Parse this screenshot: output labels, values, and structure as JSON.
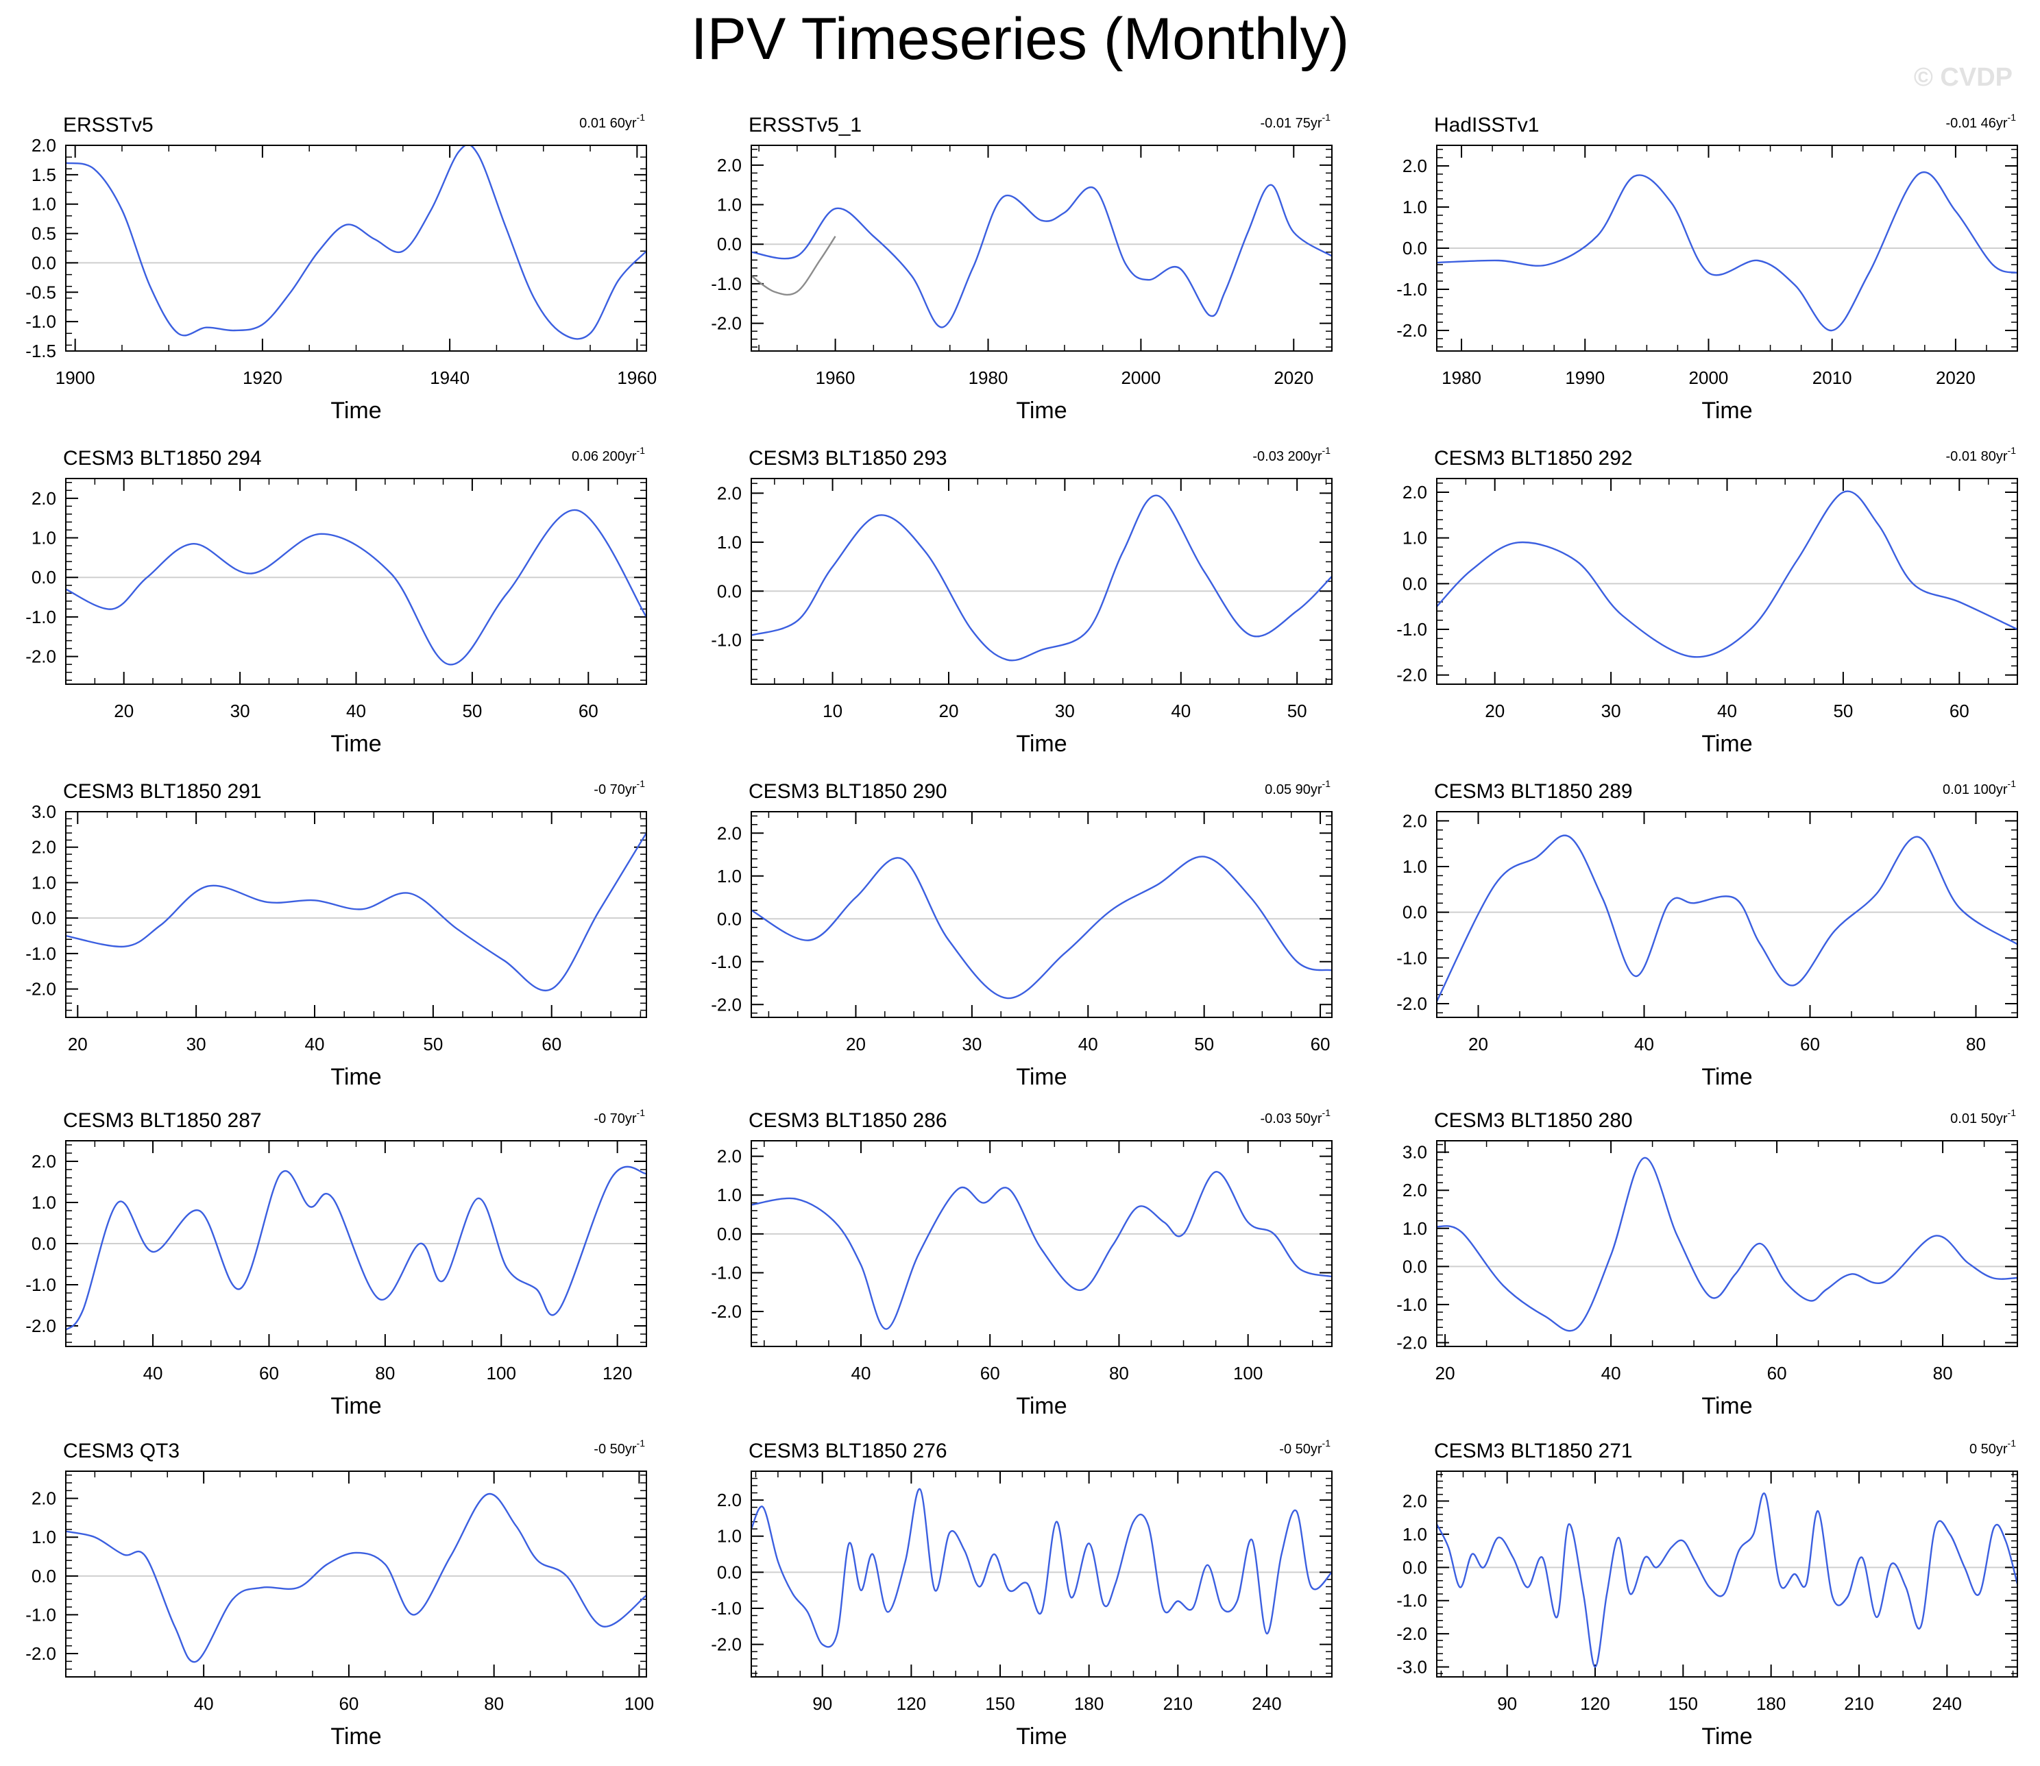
{
  "title": "IPV Timeseries (Monthly)",
  "watermark": "© CVDP",
  "colors": {
    "series": "#3b5fe0",
    "obs_overlay": "#8c8c8c",
    "zero_line": "#cfcfcf",
    "axis": "#000000"
  },
  "chart_data": [
    {
      "type": "line",
      "title": "ERSSTv5",
      "trend": "0.01",
      "period": "60yr",
      "exp": "-1",
      "xlabel": "Time",
      "xlim": [
        1899,
        1961
      ],
      "ylim": [
        -1.5,
        2.0
      ],
      "xticks": [
        1900,
        1920,
        1940,
        1960
      ],
      "yticks": [
        2.0,
        1.5,
        1.0,
        0.5,
        0.0,
        -0.5,
        -1.0,
        -1.5
      ],
      "series": [
        {
          "name": "ipv",
          "x": [
            1899,
            1902,
            1905,
            1908,
            1911,
            1914,
            1917,
            1920,
            1923,
            1926,
            1929,
            1932,
            1935,
            1938,
            1941,
            1943,
            1946,
            1949,
            1952,
            1955,
            1958,
            1961
          ],
          "values": [
            1.7,
            1.6,
            0.9,
            -0.4,
            -1.2,
            -1.1,
            -1.15,
            -1.05,
            -0.5,
            0.2,
            0.65,
            0.4,
            0.2,
            0.9,
            1.9,
            1.85,
            0.6,
            -0.6,
            -1.2,
            -1.2,
            -0.3,
            0.2
          ]
        }
      ]
    },
    {
      "type": "line",
      "title": "ERSSTv5_1",
      "trend": "-0.01",
      "period": "75yr",
      "exp": "-1",
      "xlabel": "Time",
      "xlim": [
        1949,
        2025
      ],
      "ylim": [
        -2.7,
        2.5
      ],
      "xticks": [
        1960,
        1980,
        2000,
        2020
      ],
      "yticks": [
        2.0,
        1.0,
        0.0,
        -1.0,
        -2.0
      ],
      "series": [
        {
          "name": "ipv",
          "x": [
            1949,
            1955,
            1960,
            1965,
            1970,
            1974,
            1978,
            1982,
            1987,
            1990,
            1994,
            1998,
            2001,
            2005,
            2009,
            2011,
            2014,
            2017,
            2020,
            2025
          ],
          "values": [
            -0.2,
            -0.3,
            0.9,
            0.2,
            -0.8,
            -2.1,
            -0.6,
            1.2,
            0.6,
            0.8,
            1.4,
            -0.5,
            -0.9,
            -0.6,
            -1.8,
            -1.2,
            0.3,
            1.5,
            0.3,
            -0.3
          ]
        },
        {
          "name": "overlay",
          "x": [
            1949,
            1952,
            1955,
            1958,
            1960
          ],
          "values": [
            -0.8,
            -1.2,
            -1.2,
            -0.4,
            0.2
          ]
        }
      ]
    },
    {
      "type": "line",
      "title": "HadISSTv1",
      "trend": "-0.01",
      "period": "46yr",
      "exp": "-1",
      "xlabel": "Time",
      "xlim": [
        1978,
        2025
      ],
      "ylim": [
        -2.5,
        2.5
      ],
      "xticks": [
        1980,
        1990,
        2000,
        2010,
        2020
      ],
      "yticks": [
        2.0,
        1.0,
        0.0,
        -1.0,
        -2.0
      ],
      "series": [
        {
          "name": "ipv",
          "x": [
            1978,
            1983,
            1987,
            1991,
            1994,
            1997,
            2000,
            2004,
            2007,
            2010,
            2013,
            2017,
            2020,
            2023,
            2025
          ],
          "values": [
            -0.35,
            -0.3,
            -0.4,
            0.3,
            1.75,
            1.1,
            -0.6,
            -0.3,
            -0.9,
            -2.0,
            -0.6,
            1.8,
            0.9,
            -0.4,
            -0.6
          ]
        }
      ]
    },
    {
      "type": "line",
      "title": "CESM3 BLT1850 294",
      "trend": "0.06",
      "period": "200yr",
      "exp": "-1",
      "xlabel": "Time",
      "xlim": [
        15,
        65
      ],
      "ylim": [
        -2.7,
        2.5
      ],
      "xticks": [
        20,
        30,
        40,
        50,
        60
      ],
      "yticks": [
        2.0,
        1.0,
        0.0,
        -1.0,
        -2.0
      ],
      "series": [
        {
          "name": "ipv",
          "x": [
            15,
            19,
            22,
            26,
            31,
            37,
            43,
            48,
            53,
            59,
            65
          ],
          "values": [
            -0.3,
            -0.8,
            0.0,
            0.85,
            0.1,
            1.1,
            0.1,
            -2.2,
            -0.4,
            1.7,
            -1.0
          ]
        }
      ]
    },
    {
      "type": "line",
      "title": "CESM3 BLT1850 293",
      "trend": "-0.03",
      "period": "200yr",
      "exp": "-1",
      "xlabel": "Time",
      "xlim": [
        3,
        53
      ],
      "ylim": [
        -1.9,
        2.3
      ],
      "xticks": [
        10,
        20,
        30,
        40,
        50
      ],
      "yticks": [
        2.0,
        1.0,
        0.0,
        -1.0
      ],
      "series": [
        {
          "name": "ipv",
          "x": [
            3,
            7,
            10,
            14,
            18,
            22,
            25,
            28,
            32,
            35,
            38,
            42,
            46,
            50,
            53
          ],
          "values": [
            -0.9,
            -0.6,
            0.5,
            1.55,
            0.8,
            -0.8,
            -1.4,
            -1.2,
            -0.8,
            0.8,
            1.95,
            0.4,
            -0.9,
            -0.4,
            0.3
          ]
        }
      ]
    },
    {
      "type": "line",
      "title": "CESM3 BLT1850 292",
      "trend": "-0.01",
      "period": "80yr",
      "exp": "-1",
      "xlabel": "Time",
      "xlim": [
        15,
        65
      ],
      "ylim": [
        -2.2,
        2.3
      ],
      "xticks": [
        20,
        30,
        40,
        50,
        60
      ],
      "yticks": [
        2.0,
        1.0,
        0.0,
        -1.0,
        -2.0
      ],
      "series": [
        {
          "name": "ipv",
          "x": [
            15,
            18,
            22,
            27,
            31,
            37,
            42,
            46,
            50,
            53,
            56,
            60,
            65
          ],
          "values": [
            -0.5,
            0.3,
            0.9,
            0.5,
            -0.7,
            -1.6,
            -1.0,
            0.5,
            2.0,
            1.3,
            0.0,
            -0.4,
            -1.0
          ]
        }
      ]
    },
    {
      "type": "line",
      "title": "CESM3 BLT1850 291",
      "trend": "-0",
      "period": "70yr",
      "exp": "-1",
      "xlabel": "Time",
      "xlim": [
        19,
        68
      ],
      "ylim": [
        -2.8,
        3.0
      ],
      "xticks": [
        20,
        30,
        40,
        50,
        60
      ],
      "yticks": [
        3.0,
        2.0,
        1.0,
        0.0,
        -1.0,
        -2.0
      ],
      "series": [
        {
          "name": "ipv",
          "x": [
            19,
            24,
            27,
            31,
            36,
            40,
            44,
            48,
            52,
            56,
            60,
            64,
            68
          ],
          "values": [
            -0.5,
            -0.8,
            -0.2,
            0.9,
            0.45,
            0.5,
            0.25,
            0.7,
            -0.3,
            -1.2,
            -2.0,
            0.2,
            2.4
          ]
        }
      ]
    },
    {
      "type": "line",
      "title": "CESM3 BLT1850 290",
      "trend": "0.05",
      "period": "90yr",
      "exp": "-1",
      "xlabel": "Time",
      "xlim": [
        11,
        61
      ],
      "ylim": [
        -2.3,
        2.5
      ],
      "xticks": [
        20,
        30,
        40,
        50,
        60
      ],
      "yticks": [
        2.0,
        1.0,
        0.0,
        -1.0,
        -2.0
      ],
      "series": [
        {
          "name": "ipv",
          "x": [
            11,
            16,
            20,
            24,
            28,
            33,
            38,
            42,
            46,
            50,
            54,
            58,
            61
          ],
          "values": [
            0.2,
            -0.5,
            0.5,
            1.4,
            -0.5,
            -1.85,
            -0.8,
            0.2,
            0.8,
            1.45,
            0.5,
            -1.0,
            -1.2
          ]
        }
      ]
    },
    {
      "type": "line",
      "title": "CESM3 BLT1850 289",
      "trend": "0.01",
      "period": "100yr",
      "exp": "-1",
      "xlabel": "Time",
      "xlim": [
        15,
        85
      ],
      "ylim": [
        -2.3,
        2.2
      ],
      "xticks": [
        20,
        40,
        60,
        80
      ],
      "yticks": [
        2.0,
        1.0,
        0.0,
        -1.0,
        -2.0
      ],
      "series": [
        {
          "name": "ipv",
          "x": [
            15,
            22,
            27,
            31,
            35,
            39,
            43,
            46,
            51,
            54,
            58,
            63,
            68,
            73,
            78,
            85
          ],
          "values": [
            -1.95,
            0.6,
            1.2,
            1.65,
            0.3,
            -1.4,
            0.2,
            0.2,
            0.3,
            -0.7,
            -1.6,
            -0.4,
            0.4,
            1.65,
            0.1,
            -0.7
          ]
        }
      ]
    },
    {
      "type": "line",
      "title": "CESM3 BLT1850 287",
      "trend": "-0",
      "period": "70yr",
      "exp": "-1",
      "xlabel": "Time",
      "xlim": [
        25,
        125
      ],
      "ylim": [
        -2.5,
        2.5
      ],
      "xticks": [
        40,
        60,
        80,
        100,
        120
      ],
      "yticks": [
        2.0,
        1.0,
        0.0,
        -1.0,
        -2.0
      ],
      "series": [
        {
          "name": "ipv",
          "x": [
            25,
            28,
            34,
            40,
            48,
            55,
            62,
            67,
            71,
            79,
            86,
            90,
            96,
            101,
            106,
            110,
            119,
            125
          ],
          "values": [
            -2.1,
            -1.6,
            1.0,
            -0.2,
            0.8,
            -1.1,
            1.7,
            0.9,
            1.1,
            -1.35,
            0.0,
            -0.9,
            1.1,
            -0.6,
            -1.1,
            -1.6,
            1.6,
            1.7
          ]
        }
      ]
    },
    {
      "type": "line",
      "title": "CESM3 BLT1850 286",
      "trend": "-0.03",
      "period": "50yr",
      "exp": "-1",
      "xlabel": "Time",
      "xlim": [
        23,
        113
      ],
      "ylim": [
        -2.9,
        2.4
      ],
      "xticks": [
        40,
        60,
        80,
        100
      ],
      "yticks": [
        2.0,
        1.0,
        0.0,
        -1.0,
        -2.0
      ],
      "series": [
        {
          "name": "ipv",
          "x": [
            23,
            30,
            36,
            40,
            44,
            49,
            55,
            59,
            63,
            68,
            74,
            79,
            83,
            87,
            90,
            95,
            100,
            104,
            108,
            113
          ],
          "values": [
            0.75,
            0.9,
            0.3,
            -0.8,
            -2.45,
            -0.5,
            1.15,
            0.8,
            1.15,
            -0.4,
            -1.45,
            -0.3,
            0.7,
            0.3,
            0.0,
            1.6,
            0.3,
            0.0,
            -0.9,
            -1.1
          ]
        }
      ]
    },
    {
      "type": "line",
      "title": "CESM3 BLT1850 280",
      "trend": "0.01",
      "period": "50yr",
      "exp": "-1",
      "xlabel": "Time",
      "xlim": [
        19,
        89
      ],
      "ylim": [
        -2.1,
        3.3
      ],
      "xticks": [
        20,
        40,
        60,
        80
      ],
      "yticks": [
        3.0,
        2.0,
        1.0,
        0.0,
        -1.0,
        -2.0
      ],
      "series": [
        {
          "name": "ipv",
          "x": [
            19,
            22,
            27,
            32,
            36,
            40,
            44,
            48,
            52,
            55,
            58,
            61,
            64,
            66,
            69,
            73,
            79,
            83,
            86,
            89
          ],
          "values": [
            1.05,
            0.9,
            -0.5,
            -1.3,
            -1.6,
            0.3,
            2.85,
            0.8,
            -0.8,
            -0.2,
            0.6,
            -0.4,
            -0.9,
            -0.6,
            -0.2,
            -0.4,
            0.8,
            0.1,
            -0.3,
            -0.3
          ]
        }
      ]
    },
    {
      "type": "line",
      "title": "CESM3 QT3",
      "trend": "-0",
      "period": "50yr",
      "exp": "-1",
      "xlabel": "Time",
      "xlim": [
        21,
        101
      ],
      "ylim": [
        -2.6,
        2.7
      ],
      "xticks": [
        40,
        60,
        80,
        100
      ],
      "yticks": [
        2.0,
        1.0,
        0.0,
        -1.0,
        -2.0
      ],
      "series": [
        {
          "name": "ipv",
          "x": [
            21,
            25,
            29,
            32,
            36,
            39,
            44,
            48,
            53,
            57,
            61,
            65,
            69,
            74,
            79,
            83,
            86,
            90,
            95,
            101
          ],
          "values": [
            1.15,
            1.0,
            0.55,
            0.5,
            -1.3,
            -2.2,
            -0.6,
            -0.3,
            -0.3,
            0.3,
            0.6,
            0.3,
            -1.0,
            0.5,
            2.1,
            1.3,
            0.4,
            0.0,
            -1.3,
            -0.5
          ]
        }
      ]
    },
    {
      "type": "line",
      "title": "CESM3 BLT1850 276",
      "trend": "-0",
      "period": "50yr",
      "exp": "-1",
      "xlabel": "Time",
      "xlim": [
        66,
        262
      ],
      "ylim": [
        -2.9,
        2.8
      ],
      "xticks": [
        90,
        120,
        150,
        180,
        210,
        240
      ],
      "yticks": [
        2.0,
        1.0,
        0.0,
        -1.0,
        -2.0
      ],
      "series": [
        {
          "name": "ipv",
          "x": [
            66,
            70,
            75,
            80,
            85,
            90,
            95,
            99,
            103,
            107,
            112,
            118,
            123,
            128,
            133,
            138,
            143,
            148,
            153,
            159,
            164,
            169,
            174,
            180,
            185,
            189,
            195,
            200,
            205,
            210,
            215,
            220,
            225,
            230,
            235,
            240,
            245,
            250,
            255,
            262
          ],
          "values": [
            1.2,
            1.8,
            0.3,
            -0.6,
            -1.1,
            -2.0,
            -1.7,
            0.8,
            -0.5,
            0.5,
            -1.1,
            0.3,
            2.3,
            -0.5,
            1.1,
            0.6,
            -0.4,
            0.5,
            -0.5,
            -0.3,
            -1.1,
            1.4,
            -0.7,
            0.8,
            -0.9,
            -0.3,
            1.4,
            1.3,
            -1.0,
            -0.8,
            -1.0,
            0.2,
            -1.0,
            -0.8,
            0.9,
            -1.7,
            0.5,
            1.7,
            -0.4,
            0.0
          ]
        }
      ]
    },
    {
      "type": "line",
      "title": "CESM3 BLT1850 271",
      "trend": "0",
      "period": "50yr",
      "exp": "-1",
      "xlabel": "Time",
      "xlim": [
        66,
        264
      ],
      "ylim": [
        -3.3,
        2.9
      ],
      "xticks": [
        90,
        120,
        150,
        180,
        210,
        240
      ],
      "yticks": [
        2.0,
        1.0,
        0.0,
        -1.0,
        -2.0,
        -3.0
      ],
      "series": [
        {
          "name": "ipv",
          "x": [
            66,
            70,
            74,
            78,
            82,
            87,
            92,
            97,
            102,
            107,
            111,
            116,
            120,
            124,
            128,
            132,
            137,
            141,
            146,
            150,
            154,
            159,
            164,
            169,
            174,
            178,
            183,
            188,
            192,
            196,
            201,
            206,
            211,
            216,
            221,
            226,
            231,
            236,
            241,
            246,
            251,
            256,
            260,
            264
          ],
          "values": [
            1.3,
            0.6,
            -0.6,
            0.4,
            0.0,
            0.9,
            0.3,
            -0.6,
            0.3,
            -1.5,
            1.3,
            -0.8,
            -3.0,
            -0.8,
            0.9,
            -0.8,
            0.3,
            0.0,
            0.6,
            0.8,
            0.2,
            -0.6,
            -0.8,
            0.5,
            1.0,
            2.2,
            -0.5,
            -0.2,
            -0.5,
            1.7,
            -0.9,
            -0.9,
            0.3,
            -1.5,
            0.1,
            -0.6,
            -1.8,
            1.2,
            1.0,
            0.0,
            -0.8,
            1.2,
            0.8,
            -0.5
          ]
        }
      ]
    }
  ]
}
